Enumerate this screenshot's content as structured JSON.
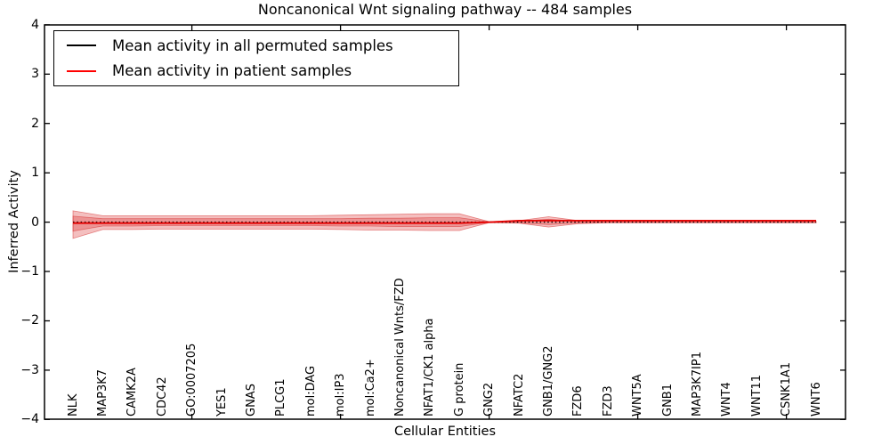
{
  "figure": {
    "title": "Noncanonical Wnt signaling pathway -- 484 samples",
    "xlabel": "Cellular Entities",
    "ylabel": "Inferred Activity"
  },
  "legend": {
    "items": [
      {
        "label": "Mean activity in all permuted samples",
        "color": "#000000"
      },
      {
        "label": "Mean activity in patient samples",
        "color": "#ff0000"
      }
    ]
  },
  "colors": {
    "band_fill": "rgba(222,56,56,0.32)",
    "band_edge": "rgba(214,48,48,0.55)",
    "patient_line": "#e60000",
    "permuted_line": "#000000",
    "axis": "#000000"
  },
  "chart_data": {
    "type": "line",
    "title": "Noncanonical Wnt signaling pathway -- 484 samples",
    "xlabel": "Cellular Entities",
    "ylabel": "Inferred Activity",
    "ylim": [
      -4,
      4
    ],
    "yticks": [
      4,
      3,
      2,
      1,
      0,
      -1,
      -2,
      -3,
      -4
    ],
    "ytick_labels": [
      "4",
      "3",
      "2",
      "1",
      "0",
      "−1",
      "−2",
      "−3",
      "−4"
    ],
    "xtick_indices": [
      4,
      9,
      14,
      19,
      24
    ],
    "grid": false,
    "legend_position": "upper left",
    "categories": [
      "NLK",
      "MAP3K7",
      "CAMK2A",
      "CDC42",
      "GO:0007205",
      "YES1",
      "GNAS",
      "PLCG1",
      "mol:DAG",
      "mol:IP3",
      "mol:Ca2+",
      "Noncanonical Wnts/FZD",
      "NFAT1/CK1 alpha",
      "G protein",
      "GNG2",
      "NFATC2",
      "GNB1/GNG2",
      "FZD6",
      "FZD3",
      "WNT5A",
      "GNB1",
      "MAP3K7IP1",
      "WNT4",
      "WNT11",
      "CSNK1A1",
      "WNT6"
    ],
    "series": [
      {
        "name": "Mean activity in all permuted samples",
        "style": "dotted",
        "color": "#000000",
        "values": [
          0,
          0,
          0,
          0,
          0,
          0,
          0,
          0,
          0,
          0,
          0,
          0,
          0,
          0,
          0,
          0,
          0,
          0,
          0,
          0,
          0,
          0,
          0,
          0,
          0,
          0
        ]
      },
      {
        "name": "Mean activity in patient samples",
        "style": "solid",
        "color": "#e60000",
        "values": [
          -0.02,
          -0.02,
          -0.02,
          -0.02,
          -0.02,
          -0.02,
          -0.02,
          -0.02,
          -0.02,
          -0.02,
          -0.02,
          -0.02,
          -0.02,
          -0.02,
          0.0,
          0.03,
          0.03,
          0.03,
          0.03,
          0.03,
          0.03,
          0.03,
          0.03,
          0.03,
          0.03,
          0.03
        ]
      }
    ],
    "bands": [
      {
        "name": "outer-confidence-band",
        "upper": [
          0.23,
          0.13,
          0.13,
          0.13,
          0.13,
          0.13,
          0.13,
          0.13,
          0.13,
          0.14,
          0.15,
          0.16,
          0.17,
          0.17,
          0.01,
          0.03,
          0.11,
          0.03,
          0.02,
          0.02,
          0.02,
          0.02,
          0.02,
          0.02,
          0.02,
          0.02
        ],
        "lower": [
          -0.33,
          -0.15,
          -0.15,
          -0.14,
          -0.14,
          -0.14,
          -0.14,
          -0.14,
          -0.14,
          -0.15,
          -0.16,
          -0.16,
          -0.17,
          -0.17,
          -0.01,
          -0.02,
          -0.1,
          -0.03,
          -0.01,
          -0.01,
          -0.01,
          -0.01,
          -0.01,
          -0.01,
          -0.01,
          -0.01
        ]
      },
      {
        "name": "inner-confidence-band",
        "upper": [
          0.12,
          0.07,
          0.07,
          0.07,
          0.07,
          0.07,
          0.07,
          0.07,
          0.07,
          0.07,
          0.08,
          0.08,
          0.09,
          0.09,
          0.005,
          0.015,
          0.06,
          0.015,
          0.01,
          0.01,
          0.01,
          0.01,
          0.01,
          0.01,
          0.01,
          0.01
        ],
        "lower": [
          -0.18,
          -0.08,
          -0.08,
          -0.07,
          -0.07,
          -0.07,
          -0.07,
          -0.07,
          -0.07,
          -0.08,
          -0.08,
          -0.09,
          -0.09,
          -0.09,
          -0.005,
          -0.01,
          -0.05,
          -0.015,
          -0.01,
          -0.01,
          -0.01,
          -0.01,
          -0.01,
          -0.01,
          -0.01,
          -0.01
        ]
      }
    ]
  }
}
